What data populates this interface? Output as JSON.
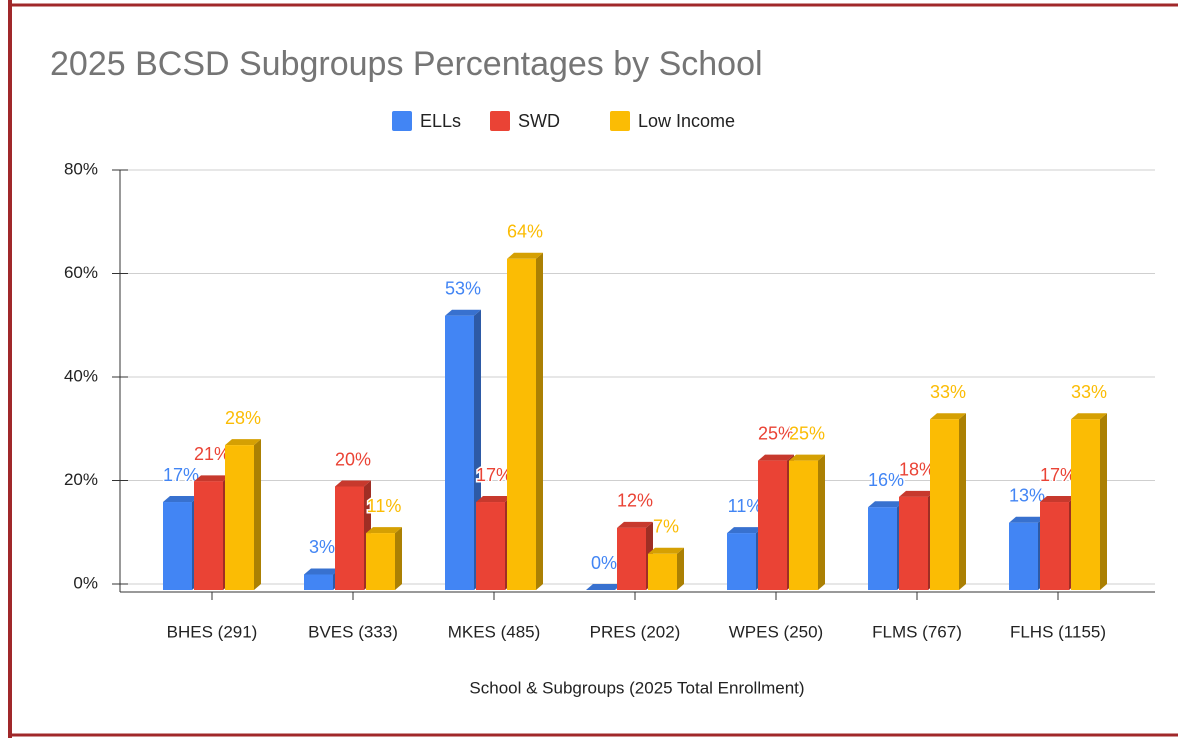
{
  "chart_data": {
    "type": "bar3d",
    "title": "2025 BCSD Subgroups Percentages by School",
    "x_label": "School & Subgroups (2025 Total Enrollment)",
    "categories": [
      "BHES (291)",
      "BVES (333)",
      "MKES (485)",
      "PRES (202)",
      "WPES (250)",
      "FLMS (767)",
      "FLHS (1155)"
    ],
    "series": [
      {
        "name": "ELLs",
        "color": "#4285f4",
        "values": [
          17,
          3,
          53,
          0,
          11,
          16,
          13
        ],
        "value_labels": [
          "17%",
          "3%",
          "53%",
          "0%",
          "11%",
          "16%",
          "13%"
        ]
      },
      {
        "name": "SWD",
        "color": "#ea4335",
        "values": [
          21,
          20,
          17,
          12,
          25,
          18,
          17
        ],
        "value_labels": [
          "21%",
          "20%",
          "17%",
          "12%",
          "25%",
          "18%",
          "17%"
        ]
      },
      {
        "name": "Low Income",
        "color": "#fbbc04",
        "values": [
          28,
          11,
          64,
          7,
          25,
          33,
          33
        ],
        "value_labels": [
          "28%",
          "11%",
          "64%",
          "7%",
          "25%",
          "33%",
          "33%"
        ]
      }
    ],
    "ylim": [
      0,
      80
    ],
    "yticks": [
      {
        "value": 0,
        "label": "0%"
      },
      {
        "value": 20,
        "label": "20%"
      },
      {
        "value": 40,
        "label": "40%"
      },
      {
        "value": 60,
        "label": "60%"
      },
      {
        "value": 80,
        "label": "80%"
      }
    ],
    "grid": true,
    "legend": "top"
  }
}
